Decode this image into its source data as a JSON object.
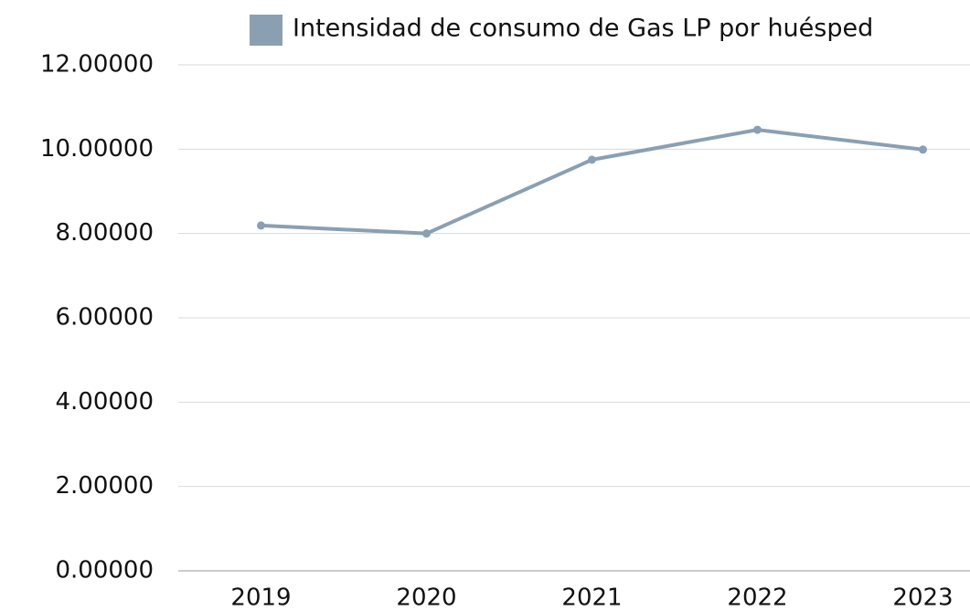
{
  "chart_data": {
    "type": "line",
    "categories": [
      "2019",
      "2020",
      "2021",
      "2022",
      "2023"
    ],
    "series": [
      {
        "name": "Intensidad de consumo de Gas LP por huésped",
        "color": "#8aa0b2",
        "values": [
          8.19,
          8.0,
          9.75,
          10.46,
          9.99
        ]
      }
    ],
    "ylim": [
      0,
      12
    ],
    "yticks": [
      {
        "value": 0,
        "label": "0.00000"
      },
      {
        "value": 2,
        "label": "2.00000"
      },
      {
        "value": 4,
        "label": "4.00000"
      },
      {
        "value": 6,
        "label": "6.00000"
      },
      {
        "value": 8,
        "label": "8.00000"
      },
      {
        "value": 10,
        "label": "10.00000"
      },
      {
        "value": 12,
        "label": "12.00000"
      }
    ],
    "grid": true,
    "legend": "top"
  }
}
